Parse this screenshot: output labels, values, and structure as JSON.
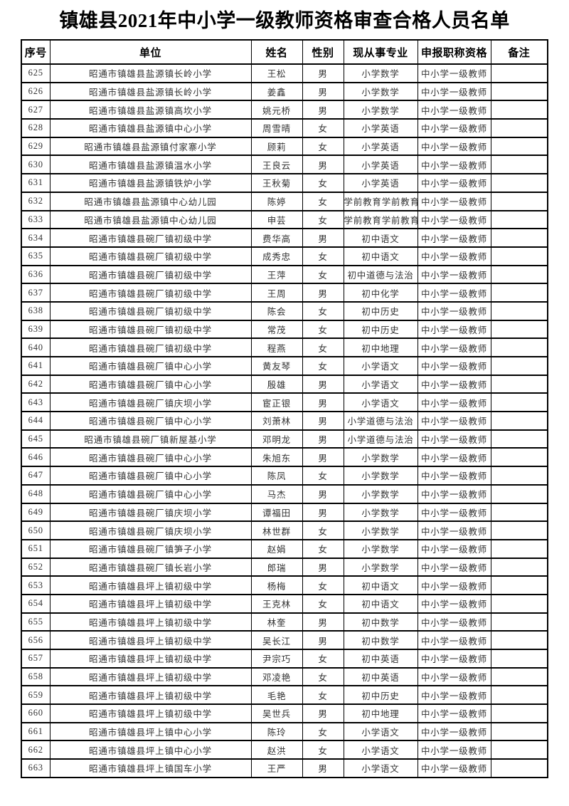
{
  "title": "镇雄县2021年中小学一级教师资格审查合格人员名单",
  "table": {
    "headers": [
      "序号",
      "单位",
      "姓名",
      "性别",
      "现从事专业",
      "申报职称资格",
      "备注"
    ],
    "column_keys": [
      "seq",
      "unit",
      "name",
      "gender",
      "major",
      "qualification",
      "remark"
    ],
    "rows": [
      [
        "625",
        "昭通市镇雄县盐源镇长岭小学",
        "王松",
        "男",
        "小学数学",
        "中小学一级教师",
        ""
      ],
      [
        "626",
        "昭通市镇雄县盐源镇长岭小学",
        "姜鑫",
        "男",
        "小学数学",
        "中小学一级教师",
        ""
      ],
      [
        "627",
        "昭通市镇雄县盐源镇高坎小学",
        "姚元桥",
        "男",
        "小学数学",
        "中小学一级教师",
        ""
      ],
      [
        "628",
        "昭通市镇雄县盐源镇中心小学",
        "周雪晴",
        "女",
        "小学英语",
        "中小学一级教师",
        ""
      ],
      [
        "629",
        "昭通市镇雄县盐源镇付家寨小学",
        "顾莉",
        "女",
        "小学英语",
        "中小学一级教师",
        ""
      ],
      [
        "630",
        "昭通市镇雄县盐源镇温水小学",
        "王良云",
        "男",
        "小学英语",
        "中小学一级教师",
        ""
      ],
      [
        "631",
        "昭通市镇雄县盐源镇铁炉小学",
        "王秋菊",
        "女",
        "小学英语",
        "中小学一级教师",
        ""
      ],
      [
        "632",
        "昭通市镇雄县盐源镇中心幼儿园",
        "陈婷",
        "女",
        "学前教育学前教育",
        "中小学一级教师",
        ""
      ],
      [
        "633",
        "昭通市镇雄县盐源镇中心幼儿园",
        "申芸",
        "女",
        "学前教育学前教育",
        "中小学一级教师",
        ""
      ],
      [
        "634",
        "昭通市镇雄县碗厂镇初级中学",
        "费华高",
        "男",
        "初中语文",
        "中小学一级教师",
        ""
      ],
      [
        "635",
        "昭通市镇雄县碗厂镇初级中学",
        "成秀忠",
        "女",
        "初中语文",
        "中小学一级教师",
        ""
      ],
      [
        "636",
        "昭通市镇雄县碗厂镇初级中学",
        "王萍",
        "女",
        "初中道德与法治",
        "中小学一级教师",
        ""
      ],
      [
        "637",
        "昭通市镇雄县碗厂镇初级中学",
        "王周",
        "男",
        "初中化学",
        "中小学一级教师",
        ""
      ],
      [
        "638",
        "昭通市镇雄县碗厂镇初级中学",
        "陈会",
        "女",
        "初中历史",
        "中小学一级教师",
        ""
      ],
      [
        "639",
        "昭通市镇雄县碗厂镇初级中学",
        "常茂",
        "女",
        "初中历史",
        "中小学一级教师",
        ""
      ],
      [
        "640",
        "昭通市镇雄县碗厂镇初级中学",
        "程燕",
        "女",
        "初中地理",
        "中小学一级教师",
        ""
      ],
      [
        "641",
        "昭通市镇雄县碗厂镇中心小学",
        "黄友琴",
        "女",
        "小学语文",
        "中小学一级教师",
        ""
      ],
      [
        "642",
        "昭通市镇雄县碗厂镇中心小学",
        "殷雄",
        "男",
        "小学语文",
        "中小学一级教师",
        ""
      ],
      [
        "643",
        "昭通市镇雄县碗厂镇庆坝小学",
        "宦正银",
        "男",
        "小学语文",
        "中小学一级教师",
        ""
      ],
      [
        "644",
        "昭通市镇雄县碗厂镇中心小学",
        "刘萧林",
        "男",
        "小学道德与法治",
        "中小学一级教师",
        ""
      ],
      [
        "645",
        "昭通市镇雄县碗厂镇新屋基小学",
        "邓明龙",
        "男",
        "小学道德与法治",
        "中小学一级教师",
        ""
      ],
      [
        "646",
        "昭通市镇雄县碗厂镇中心小学",
        "朱旭东",
        "男",
        "小学数学",
        "中小学一级教师",
        ""
      ],
      [
        "647",
        "昭通市镇雄县碗厂镇中心小学",
        "陈凤",
        "女",
        "小学数学",
        "中小学一级教师",
        ""
      ],
      [
        "648",
        "昭通市镇雄县碗厂镇中心小学",
        "马杰",
        "男",
        "小学数学",
        "中小学一级教师",
        ""
      ],
      [
        "649",
        "昭通市镇雄县碗厂镇庆坝小学",
        "谭福田",
        "男",
        "小学数学",
        "中小学一级教师",
        ""
      ],
      [
        "650",
        "昭通市镇雄县碗厂镇庆坝小学",
        "林世群",
        "女",
        "小学数学",
        "中小学一级教师",
        ""
      ],
      [
        "651",
        "昭通市镇雄县碗厂镇笋子小学",
        "赵娟",
        "女",
        "小学数学",
        "中小学一级教师",
        ""
      ],
      [
        "652",
        "昭通市镇雄县碗厂镇长岩小学",
        "郎瑞",
        "男",
        "小学数学",
        "中小学一级教师",
        ""
      ],
      [
        "653",
        "昭通市镇雄县坪上镇初级中学",
        "杨梅",
        "女",
        "初中语文",
        "中小学一级教师",
        ""
      ],
      [
        "654",
        "昭通市镇雄县坪上镇初级中学",
        "王克林",
        "女",
        "初中语文",
        "中小学一级教师",
        ""
      ],
      [
        "655",
        "昭通市镇雄县坪上镇初级中学",
        "林奎",
        "男",
        "初中数学",
        "中小学一级教师",
        ""
      ],
      [
        "656",
        "昭通市镇雄县坪上镇初级中学",
        "吴长江",
        "男",
        "初中数学",
        "中小学一级教师",
        ""
      ],
      [
        "657",
        "昭通市镇雄县坪上镇初级中学",
        "尹宗巧",
        "女",
        "初中英语",
        "中小学一级教师",
        ""
      ],
      [
        "658",
        "昭通市镇雄县坪上镇初级中学",
        "邓凌艳",
        "女",
        "初中英语",
        "中小学一级教师",
        ""
      ],
      [
        "659",
        "昭通市镇雄县坪上镇初级中学",
        "毛艳",
        "女",
        "初中历史",
        "中小学一级教师",
        ""
      ],
      [
        "660",
        "昭通市镇雄县坪上镇初级中学",
        "吴世兵",
        "男",
        "初中地理",
        "中小学一级教师",
        ""
      ],
      [
        "661",
        "昭通市镇雄县坪上镇中心小学",
        "陈玲",
        "女",
        "小学语文",
        "中小学一级教师",
        ""
      ],
      [
        "662",
        "昭通市镇雄县坪上镇中心小学",
        "赵洪",
        "女",
        "小学语文",
        "中小学一级教师",
        ""
      ],
      [
        "663",
        "昭通市镇雄县坪上镇国车小学",
        "王严",
        "男",
        "小学语文",
        "中小学一级教师",
        ""
      ]
    ]
  }
}
